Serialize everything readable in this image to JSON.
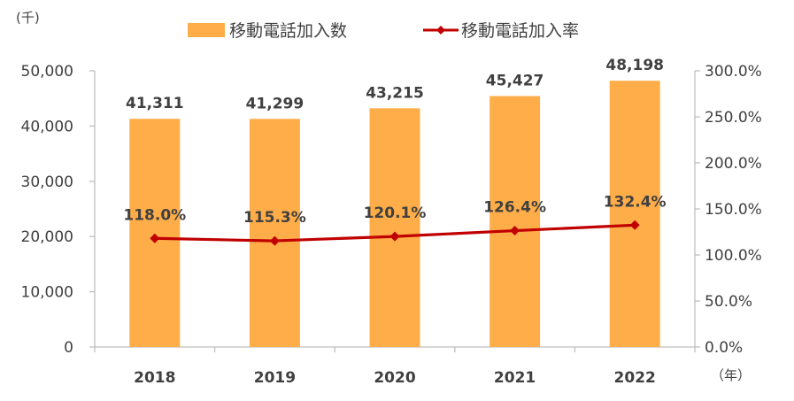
{
  "chart_data": {
    "type": "bar",
    "categories": [
      "2018",
      "2019",
      "2020",
      "2021",
      "2022"
    ],
    "series": [
      {
        "name": "移動電話加入数",
        "type": "bar",
        "axis": "left",
        "values": [
          41311,
          41299,
          43215,
          45427,
          48198
        ],
        "labels": [
          "41,311",
          "41,299",
          "43,215",
          "45,427",
          "48,198"
        ],
        "color": "#FFAD48"
      },
      {
        "name": "移動電話加入率",
        "type": "line",
        "axis": "right",
        "values": [
          118.0,
          115.3,
          120.1,
          126.4,
          132.4
        ],
        "labels": [
          "118.0%",
          "115.3%",
          "120.1%",
          "126.4%",
          "132.4%"
        ],
        "color": "#C00000"
      }
    ],
    "y_left": {
      "unit_label": "(千)",
      "ylim": [
        0,
        50000
      ],
      "ticks": [
        0,
        10000,
        20000,
        30000,
        40000,
        50000
      ],
      "tick_labels": [
        "0",
        "10,000",
        "20,000",
        "30,000",
        "40,000",
        "50,000"
      ]
    },
    "y_right": {
      "ylim": [
        0,
        300
      ],
      "ticks": [
        0,
        50,
        100,
        150,
        200,
        250,
        300
      ],
      "tick_labels": [
        "0.0%",
        "50.0%",
        "100.0%",
        "150.0%",
        "200.0%",
        "250.0%",
        "300.0%"
      ]
    },
    "x_unit_label": "（年）",
    "legend_position": "top",
    "grid": false
  }
}
